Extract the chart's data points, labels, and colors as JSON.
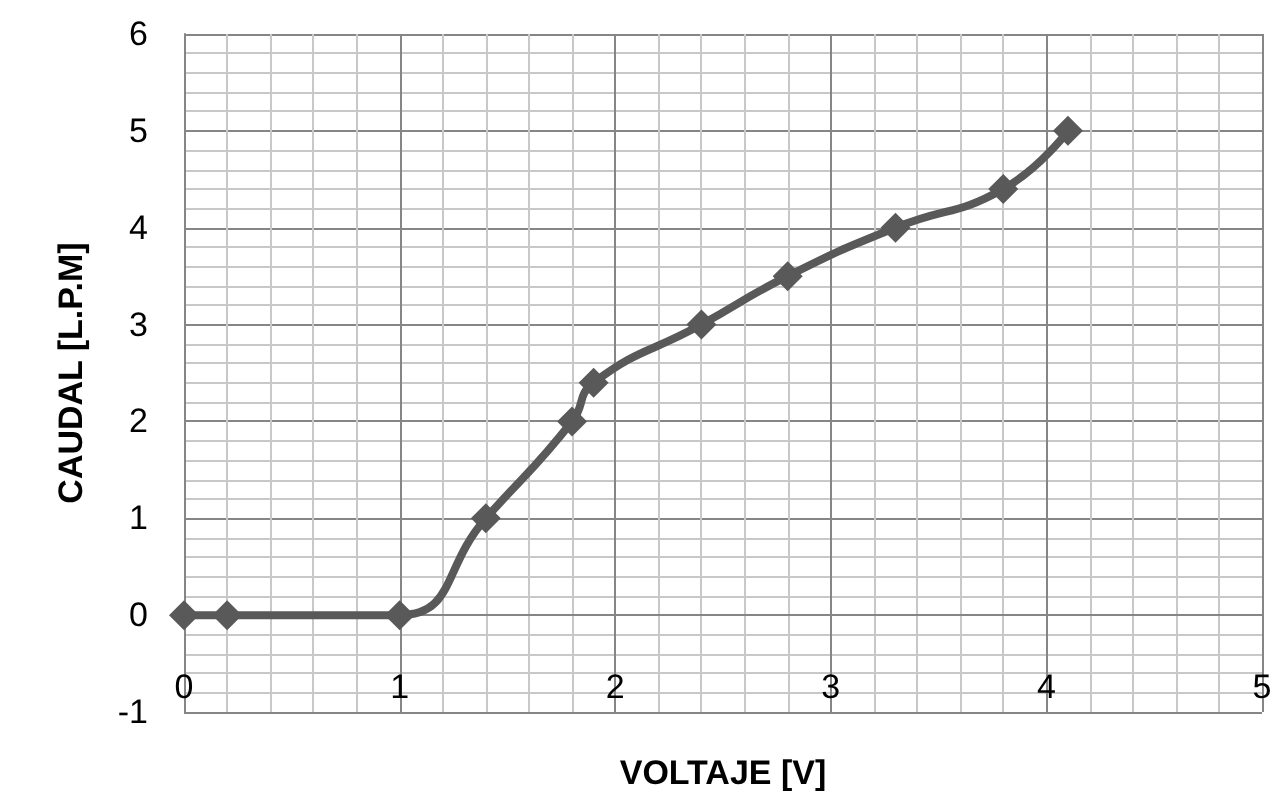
{
  "chart_data": {
    "type": "line",
    "xlabel": "VOLTAJE [V]",
    "ylabel": "CAUDAL [L.P.M]",
    "x": [
      0,
      0.2,
      1,
      1.4,
      1.8,
      1.9,
      2.4,
      2.8,
      3.3,
      3.8,
      4.1
    ],
    "series": [
      {
        "color": "#595959",
        "values": [
          0,
          0,
          0,
          1,
          2,
          2.4,
          3,
          3.5,
          4,
          4.4,
          5
        ]
      }
    ],
    "xlim": [
      0,
      5
    ],
    "xticks": [
      0,
      1,
      2,
      3,
      4,
      5
    ],
    "ylim": [
      -1,
      6
    ],
    "yticks": [
      -1,
      0,
      1,
      2,
      3,
      4,
      5,
      6
    ],
    "grid": true,
    "marker": "diamond",
    "line_style": "solid"
  }
}
